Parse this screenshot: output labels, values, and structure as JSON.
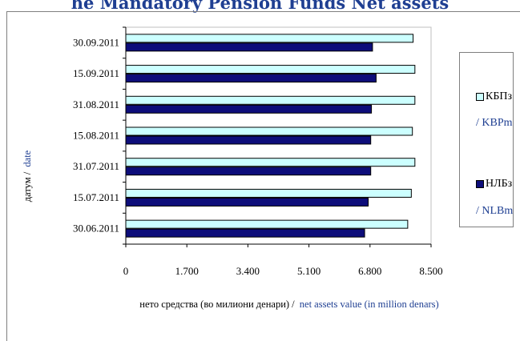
{
  "title_text": "he Mandatory Pension Funds Net assets",
  "chart_data": {
    "type": "bar",
    "orientation": "horizontal",
    "categories": [
      "30.09.2011",
      "15.09.2011",
      "31.08.2011",
      "15.08.2011",
      "31.07.2011",
      "15.07.2011",
      "30.06.2011"
    ],
    "series": [
      {
        "name": "КБПз",
        "name_en": "/ KBPm",
        "color": "#ccffff",
        "values": [
          8000,
          8050,
          8050,
          7980,
          8050,
          7950,
          7850
        ]
      },
      {
        "name": "НЛБз",
        "name_en": "/ NLBm",
        "color": "#0d0d7a",
        "values": [
          6870,
          6970,
          6840,
          6820,
          6820,
          6750,
          6650
        ]
      }
    ],
    "x_ticks": [
      "0",
      "1.700",
      "3.400",
      "5.100",
      "6.800",
      "8.500"
    ],
    "xlim": [
      0,
      8500
    ],
    "xlabel": "нето средства (во милиони денари) /",
    "xlabel_en": "net assets value (in million denars)",
    "ylabel": "датум /",
    "ylabel_en": "date",
    "grid": false,
    "legend_position": "right"
  }
}
